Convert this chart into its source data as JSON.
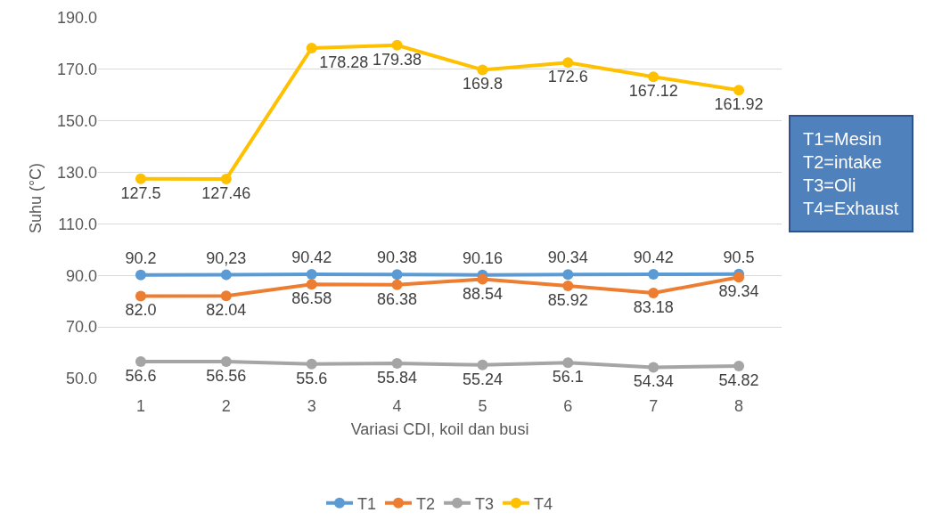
{
  "chart_data": {
    "type": "line",
    "xlabel": "Variasi CDI, koil dan busi",
    "ylabel": "Suhu (°C)",
    "categories": [
      "1",
      "2",
      "3",
      "4",
      "5",
      "6",
      "7",
      "8"
    ],
    "ylim": [
      50,
      190
    ],
    "yticks": [
      {
        "value": 50,
        "label": "50.0"
      },
      {
        "value": 70,
        "label": "70.0"
      },
      {
        "value": 90,
        "label": "90.0"
      },
      {
        "value": 110,
        "label": "110.0"
      },
      {
        "value": 130,
        "label": "130.0"
      },
      {
        "value": 150,
        "label": "150.0"
      },
      {
        "value": 170,
        "label": "170.0"
      },
      {
        "value": 190,
        "label": "190.0"
      }
    ],
    "grid": "y",
    "legend": "bottom",
    "marker": "circle",
    "line_style": "solid",
    "series": [
      {
        "name": "T1",
        "color": "#5b9bd5",
        "values": [
          90.2,
          90.23,
          90.42,
          90.38,
          90.16,
          90.34,
          90.42,
          90.5
        ],
        "value_labels": [
          "90.2",
          "90,23",
          "90.42",
          "90.38",
          "90.16",
          "90.34",
          "90.42",
          "90.5"
        ]
      },
      {
        "name": "T2",
        "color": "#ed7d31",
        "values": [
          82.0,
          82.04,
          86.58,
          86.38,
          88.54,
          85.92,
          83.18,
          89.34
        ],
        "value_labels": [
          "82.0",
          "82.04",
          "86.58",
          "86.38",
          "88.54",
          "85.92",
          "83.18",
          "89.34"
        ]
      },
      {
        "name": "T3",
        "color": "#a5a5a5",
        "values": [
          56.6,
          56.56,
          55.6,
          55.84,
          55.24,
          56.1,
          54.34,
          54.82
        ],
        "value_labels": [
          "56.6",
          "56.56",
          "55.6",
          "55.84",
          "55.24",
          "56.1",
          "54.34",
          "54.82"
        ]
      },
      {
        "name": "T4",
        "color": "#ffc000",
        "values": [
          127.5,
          127.46,
          178.28,
          179.38,
          169.8,
          172.6,
          167.12,
          161.92
        ],
        "value_labels": [
          "127.5",
          "127.46",
          "178.28",
          "179.38",
          "169.8",
          "172.6",
          "167.12",
          "161.92"
        ]
      }
    ],
    "annotations": [
      "T1=Mesin\nT2=intake\nT3=Oli\nT4=Exhaust"
    ]
  }
}
